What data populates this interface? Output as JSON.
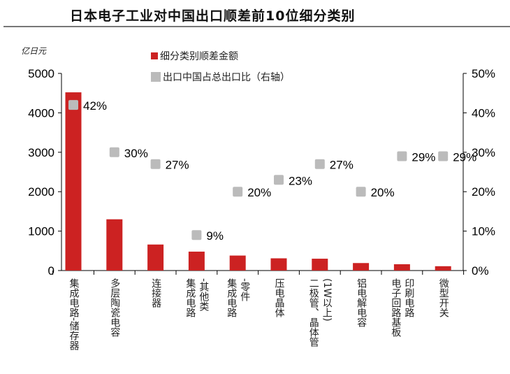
{
  "title": "日本电子工业对中国出口顺差前10位细分类别",
  "chart_data": {
    "type": "bar+scatter",
    "unit_label": "亿日元",
    "categories": [
      "集成电路-储存器",
      "多层陶瓷电容",
      "连接器",
      "集成电路\n-其他类",
      "集成电路\n-零件",
      "压电晶体",
      "二极管、晶体管\n(1W以上)",
      "铝电解电容",
      "电子回路基板\n印刷电路",
      "微型开关"
    ],
    "series": [
      {
        "name": "细分类别顺差金额",
        "type": "bar",
        "axis": "left",
        "color": "#cc2222",
        "values": [
          4520,
          1300,
          660,
          480,
          380,
          310,
          300,
          190,
          160,
          110
        ]
      },
      {
        "name": "出口中国占总出口比（右轴）",
        "type": "scatter",
        "axis": "right",
        "color": "#bbbbbb",
        "values": [
          42,
          30,
          27,
          9,
          20,
          23,
          27,
          20,
          29,
          29
        ],
        "labels": [
          "42%",
          "30%",
          "27%",
          "9%",
          "20%",
          "23%",
          "27%",
          "20%",
          "29%",
          "29%"
        ]
      }
    ],
    "ylim": [
      0,
      5000
    ],
    "yticks": [
      "0",
      "1000",
      "2000",
      "3000",
      "4000",
      "5000"
    ],
    "y2lim": [
      0,
      50
    ],
    "y2ticks": [
      "0%",
      "10%",
      "20%",
      "30%",
      "40%",
      "50%"
    ],
    "grid": false,
    "legend": "top-center"
  }
}
